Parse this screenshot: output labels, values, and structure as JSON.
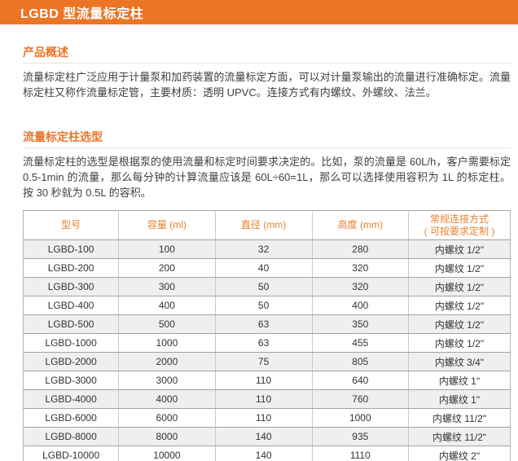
{
  "header": {
    "title": "LGBD 型流量标定柱"
  },
  "colors": {
    "accent_orange_bar": "#EB7524",
    "heading_orange": "#EA742B",
    "table_header_orange": "#E8812F",
    "body_text": "#404040",
    "table_alt_row_bg": "#EFEFEF",
    "table_border_horizontal": "#a2a2a2",
    "table_border_vertical": "#c8c8c8"
  },
  "sections": {
    "overview": {
      "heading": "产品概述",
      "paragraph": "流量标定柱广泛应用于计量泵和加药装置的流量标定方面，可以对计量泵输出的流量进行准确标定。流量标定柱又称作流量标定管，主要材质：透明 UPVC。连接方式有内螺纹、外螺纹、法兰。"
    },
    "selection": {
      "heading": "流量标定柱选型",
      "paragraph": "流量标定柱的选型是根据泵的使用流量和标定时间要求决定的。比如，泵的流量是 60L/h，客户需要标定 0.5-1min 的流量，那么每分钟的计算流量应该是 60L÷60=1L，那么可以选择使用容积为 1L 的标定柱。按 30 秒就为 0.5L 的容积。"
    }
  },
  "table": {
    "headers": [
      {
        "label": "型号"
      },
      {
        "label": "容量 (ml)"
      },
      {
        "label": "直径 (mm)"
      },
      {
        "label": "高度 (mm)"
      },
      {
        "label": "常规连接方式",
        "sublabel": "( 可按要求定制 )"
      }
    ],
    "rows": [
      [
        "LGBD-100",
        "100",
        "32",
        "280",
        "内螺纹 1/2\""
      ],
      [
        "LGBD-200",
        "200",
        "40",
        "320",
        "内螺纹 1/2\""
      ],
      [
        "LGBD-300",
        "300",
        "50",
        "320",
        "内螺纹 1/2\""
      ],
      [
        "LGBD-400",
        "400",
        "50",
        "400",
        "内螺纹 1/2\""
      ],
      [
        "LGBD-500",
        "500",
        "63",
        "350",
        "内螺纹 1/2\""
      ],
      [
        "LGBD-1000",
        "1000",
        "63",
        "455",
        "内螺纹 1/2\""
      ],
      [
        "LGBD-2000",
        "2000",
        "75",
        "805",
        "内螺纹 3/4\""
      ],
      [
        "LGBD-3000",
        "3000",
        "110",
        "640",
        "内螺纹 1\""
      ],
      [
        "LGBD-4000",
        "4000",
        "110",
        "760",
        "内螺纹 1\""
      ],
      [
        "LGBD-6000",
        "6000",
        "110",
        "1000",
        "内螺纹 11/2\""
      ],
      [
        "LGBD-8000",
        "8000",
        "140",
        "935",
        "内螺纹 11/2\""
      ],
      [
        "LGBD-10000",
        "10000",
        "140",
        "1110",
        "内螺纹 2\""
      ]
    ]
  }
}
